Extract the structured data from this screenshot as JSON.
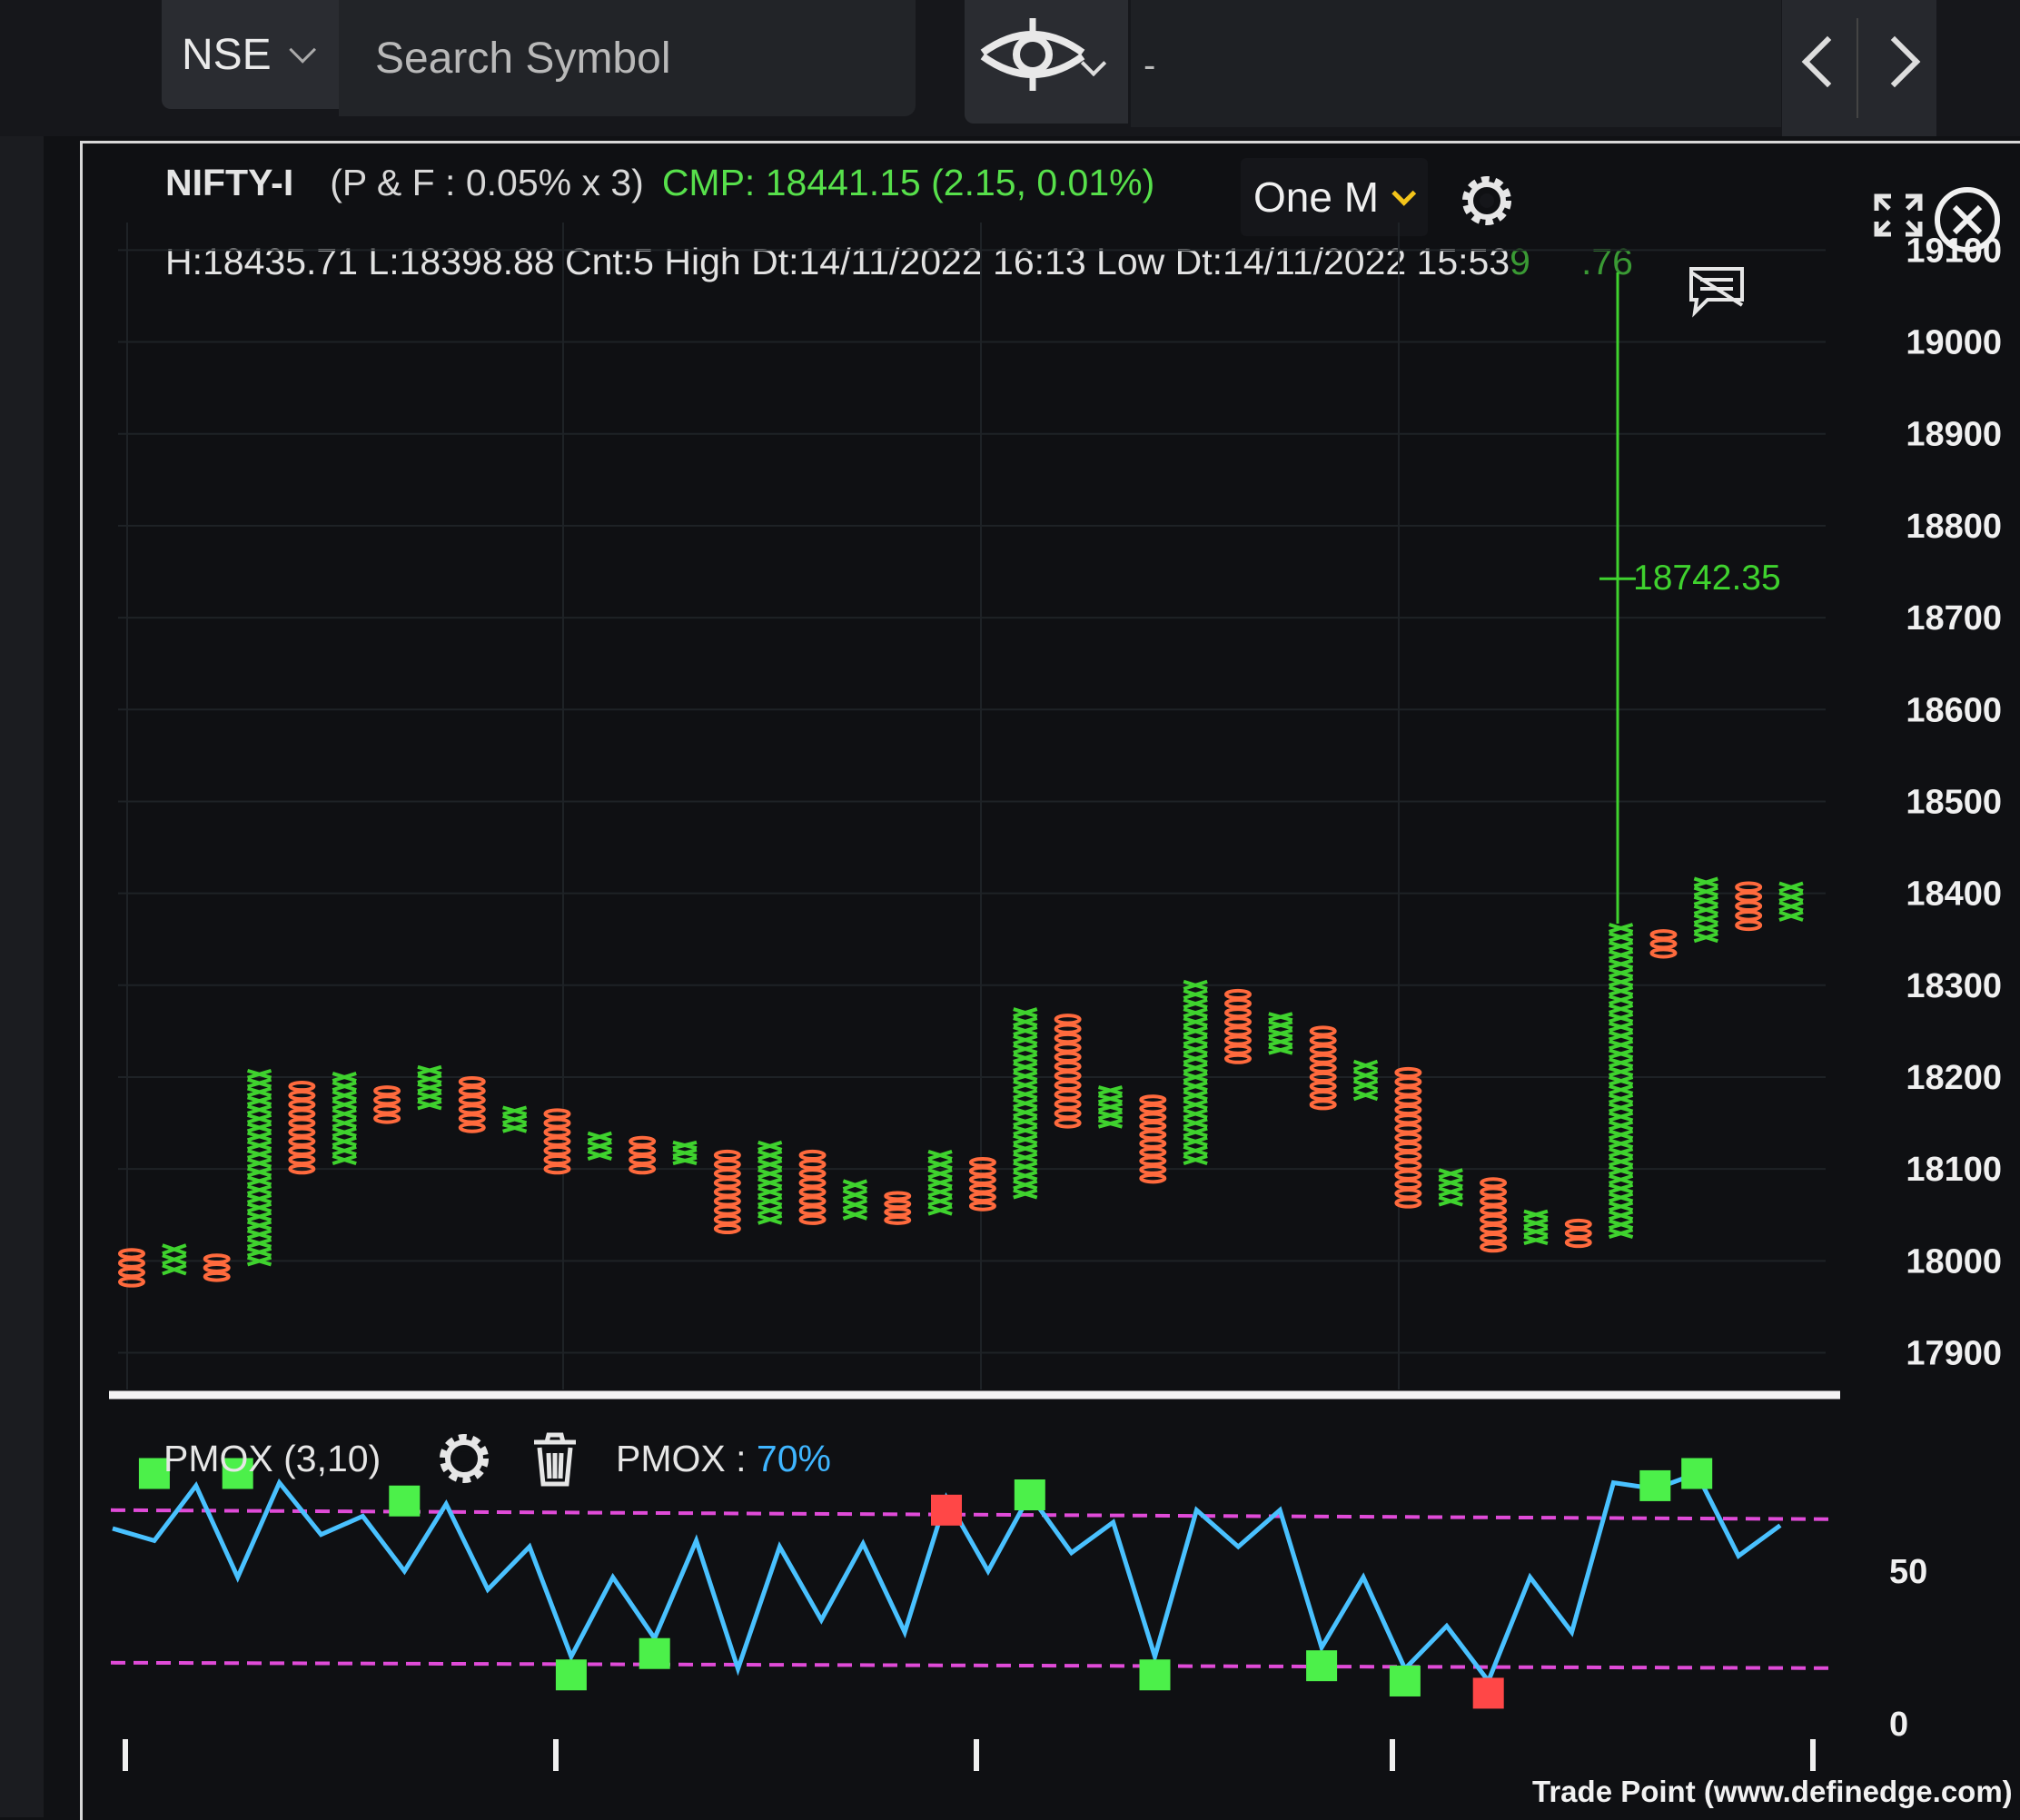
{
  "toolbar": {
    "exchange": "NSE",
    "search_placeholder": "Search Symbol",
    "info_text": "-"
  },
  "chart_header": {
    "symbol": "NIFTY-I",
    "params": "(P & F : 0.05% x 3)",
    "cmp": "CMP: 18441.15 (2.15, 0.01%)",
    "timeframe": "One M",
    "hl_line": "H:18435.71 L:18398.88 Cnt:5 High Dt:14/11/2022 16:13 Low Dt:14/11/2022 15:53",
    "top_price_partial": "9",
    "top_price_end": ".76"
  },
  "chart_data": {
    "type": "point-and-figure",
    "y_ticks": [
      19100,
      19000,
      18900,
      18800,
      18700,
      18600,
      18500,
      18400,
      18300,
      18200,
      18100,
      18000,
      17900
    ],
    "ylim": [
      17860,
      19130
    ],
    "annotation": {
      "label": "18742.35",
      "value": 18742.35
    },
    "columns": [
      {
        "type": "O",
        "high": 18013,
        "low": 17972
      },
      {
        "type": "X",
        "high": 18018,
        "low": 17985
      },
      {
        "type": "O",
        "high": 18007,
        "low": 17978
      },
      {
        "type": "X",
        "high": 18208,
        "low": 17995
      },
      {
        "type": "O",
        "high": 18195,
        "low": 18095
      },
      {
        "type": "X",
        "high": 18205,
        "low": 18105
      },
      {
        "type": "O",
        "high": 18190,
        "low": 18150
      },
      {
        "type": "X",
        "high": 18212,
        "low": 18165
      },
      {
        "type": "O",
        "high": 18200,
        "low": 18140
      },
      {
        "type": "X",
        "high": 18168,
        "low": 18140
      },
      {
        "type": "O",
        "high": 18165,
        "low": 18095
      },
      {
        "type": "X",
        "high": 18140,
        "low": 18110
      },
      {
        "type": "O",
        "high": 18135,
        "low": 18095
      },
      {
        "type": "X",
        "high": 18130,
        "low": 18105
      },
      {
        "type": "O",
        "high": 18120,
        "low": 18030
      },
      {
        "type": "X",
        "high": 18130,
        "low": 18040
      },
      {
        "type": "O",
        "high": 18120,
        "low": 18040
      },
      {
        "type": "X",
        "high": 18088,
        "low": 18045
      },
      {
        "type": "O",
        "high": 18075,
        "low": 18040
      },
      {
        "type": "X",
        "high": 18120,
        "low": 18050
      },
      {
        "type": "O",
        "high": 18112,
        "low": 18055
      },
      {
        "type": "X",
        "high": 18275,
        "low": 18068
      },
      {
        "type": "O",
        "high": 18268,
        "low": 18145
      },
      {
        "type": "X",
        "high": 18190,
        "low": 18145
      },
      {
        "type": "O",
        "high": 18180,
        "low": 18085
      },
      {
        "type": "X",
        "high": 18305,
        "low": 18105
      },
      {
        "type": "O",
        "high": 18295,
        "low": 18215
      },
      {
        "type": "X",
        "high": 18270,
        "low": 18225
      },
      {
        "type": "O",
        "high": 18255,
        "low": 18165
      },
      {
        "type": "X",
        "high": 18218,
        "low": 18175
      },
      {
        "type": "O",
        "high": 18210,
        "low": 18058
      },
      {
        "type": "X",
        "high": 18100,
        "low": 18060
      },
      {
        "type": "O",
        "high": 18090,
        "low": 18010
      },
      {
        "type": "X",
        "high": 18055,
        "low": 18018
      },
      {
        "type": "O",
        "high": 18045,
        "low": 18015
      },
      {
        "type": "X",
        "high": 18367,
        "low": 18025
      },
      {
        "type": "O",
        "high": 18360,
        "low": 18330
      },
      {
        "type": "X",
        "high": 18417,
        "low": 18347
      },
      {
        "type": "O",
        "high": 18412,
        "low": 18360
      },
      {
        "type": "X",
        "high": 18412,
        "low": 18370
      }
    ]
  },
  "indicator": {
    "name": "PMOX (3,10)",
    "label": "PMOX : ",
    "value_text": "70%",
    "y_ticks": [
      50,
      0
    ],
    "upper_band": 70,
    "lower_band": 20,
    "series": [
      64,
      60,
      78,
      48,
      79,
      62,
      68,
      50,
      72,
      44,
      58,
      22,
      48,
      28,
      60,
      18,
      58,
      34,
      59,
      30,
      74,
      50,
      75,
      56,
      66,
      22,
      70,
      58,
      70,
      25,
      48,
      18,
      32,
      14,
      48,
      30,
      79,
      77,
      82,
      55,
      65
    ],
    "signals": [
      {
        "i": 1,
        "v": 82,
        "kind": "buy"
      },
      {
        "i": 3,
        "v": 82,
        "kind": "buy"
      },
      {
        "i": 7,
        "v": 73,
        "kind": "buy"
      },
      {
        "i": 11,
        "v": 16,
        "kind": "buy"
      },
      {
        "i": 13,
        "v": 23,
        "kind": "buy"
      },
      {
        "i": 20,
        "v": 70,
        "kind": "sell"
      },
      {
        "i": 22,
        "v": 75,
        "kind": "buy"
      },
      {
        "i": 25,
        "v": 16,
        "kind": "buy"
      },
      {
        "i": 29,
        "v": 19,
        "kind": "buy"
      },
      {
        "i": 31,
        "v": 14,
        "kind": "buy"
      },
      {
        "i": 33,
        "v": 10,
        "kind": "sell"
      },
      {
        "i": 37,
        "v": 78,
        "kind": "buy"
      },
      {
        "i": 38,
        "v": 82,
        "kind": "buy"
      }
    ]
  },
  "footer": {
    "watermark": "Trade Point (www.definedge.com)"
  },
  "colors": {
    "x_color": "#3fd22e",
    "o_color": "#ff6a3d",
    "line_color": "#49c1ff",
    "band_color": "#e04bd8",
    "buy_color": "#4cf04a",
    "sell_color": "#ff4747"
  },
  "icons": [
    "chevron-down-icon",
    "crosshair-eye-icon",
    "chevron-left-icon",
    "chevron-right-icon",
    "gear-icon",
    "fullscreen-icon",
    "close-icon",
    "comment-icon",
    "trash-icon"
  ]
}
